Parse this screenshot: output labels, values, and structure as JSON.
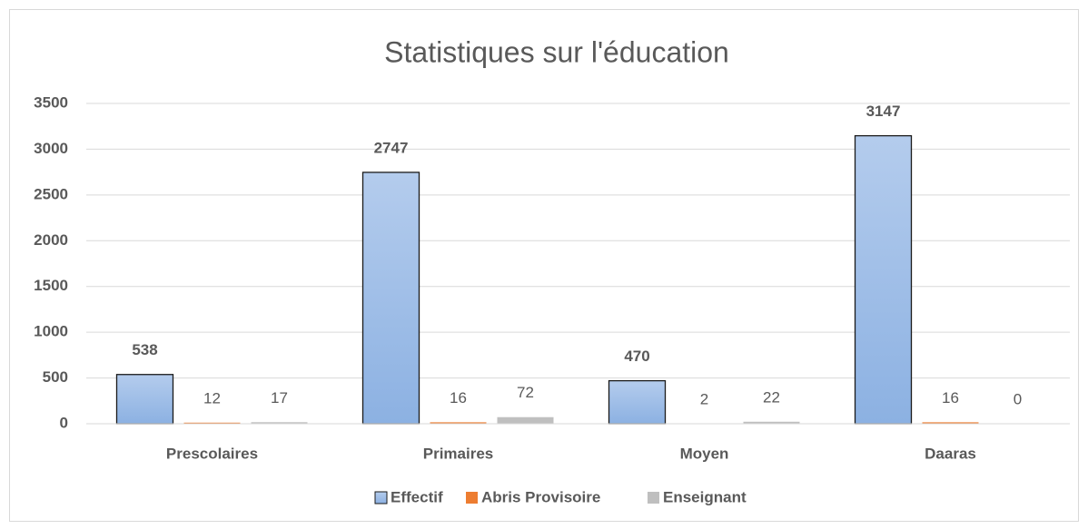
{
  "chart_data": {
    "type": "bar",
    "title": "Statistiques sur l'éducation",
    "categories": [
      "Prescolaires",
      "Primaires",
      "Moyen",
      "Daaras"
    ],
    "series": [
      {
        "name": "Effectif",
        "color": "#9dbde6",
        "values": [
          538,
          2747,
          470,
          3147
        ]
      },
      {
        "name": "Abris Provisoire",
        "color": "#ed7d31",
        "values": [
          12,
          16,
          2,
          16
        ]
      },
      {
        "name": "Enseignant",
        "color": "#bfbfbf",
        "values": [
          17,
          72,
          22,
          0
        ]
      }
    ],
    "ylim": [
      0,
      3500
    ],
    "yticks": [
      0,
      500,
      1000,
      1500,
      2000,
      2500,
      3000,
      3500
    ],
    "grid": true,
    "legend": "bottom"
  }
}
